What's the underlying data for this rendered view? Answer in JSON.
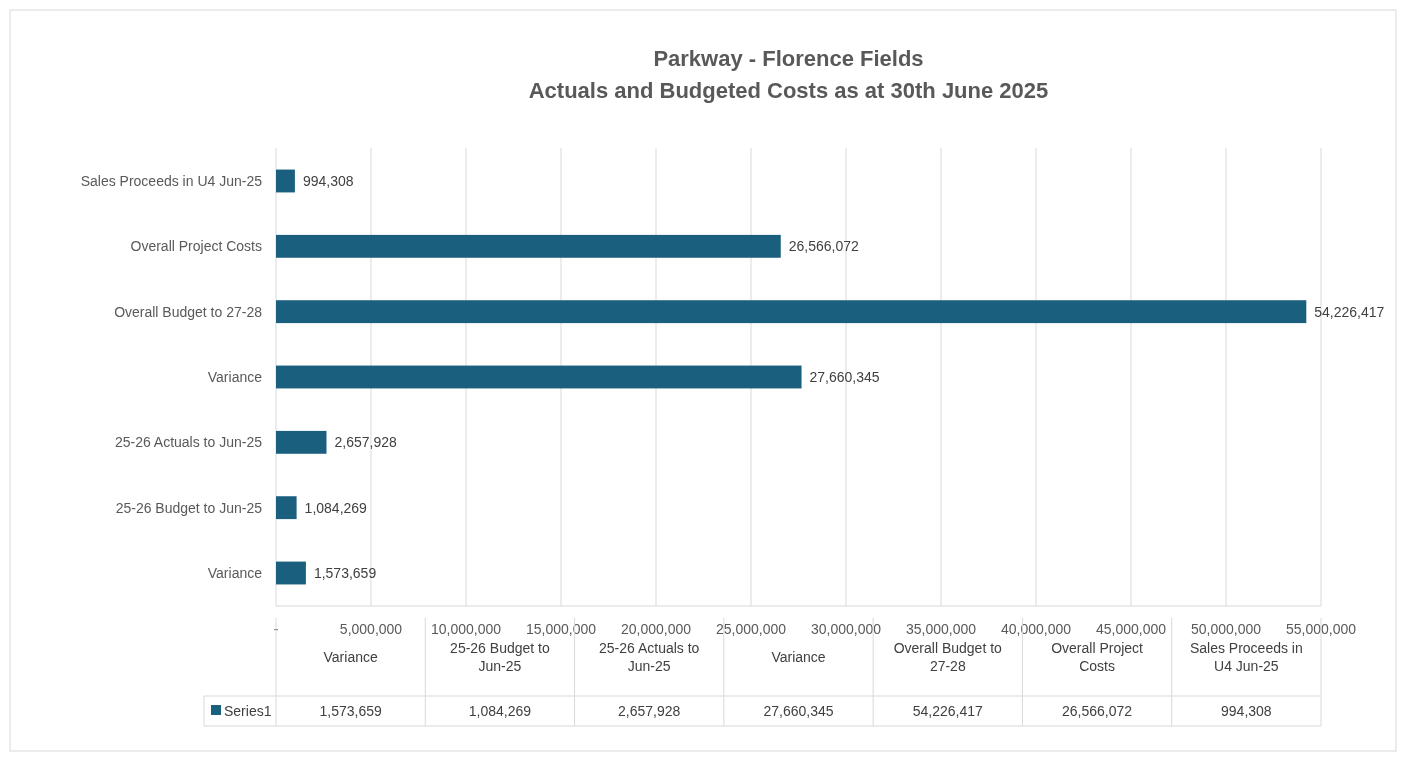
{
  "chart_data": {
    "type": "bar",
    "orientation": "horizontal",
    "title": "Parkway - Florence Fields\nActuals and Budgeted Costs as at 30th June 2025",
    "categories": [
      "Sales Proceeds in U4 Jun-25",
      "Overall Project Costs",
      "Overall Budget to 27-28",
      "Variance",
      "25-26 Actuals to Jun-25",
      "25-26 Budget to Jun-25",
      "Variance"
    ],
    "series": [
      {
        "name": "Series1",
        "color": "#1a5f7e",
        "values": [
          994308,
          26566072,
          54226417,
          27660345,
          2657928,
          1084269,
          1573659
        ],
        "value_labels": [
          "994,308",
          "26,566,072",
          "54,226,417",
          "27,660,345",
          "2,657,928",
          "1,084,269",
          "1,573,659"
        ]
      }
    ],
    "xlim": [
      0,
      55000000
    ],
    "xticks": [
      {
        "value": 0,
        "label": "-"
      },
      {
        "value": 5000000,
        "label": "5,000,000"
      },
      {
        "value": 10000000,
        "label": "10,000,000"
      },
      {
        "value": 15000000,
        "label": "15,000,000"
      },
      {
        "value": 20000000,
        "label": "20,000,000"
      },
      {
        "value": 25000000,
        "label": "25,000,000"
      },
      {
        "value": 30000000,
        "label": "30,000,000"
      },
      {
        "value": 35000000,
        "label": "35,000,000"
      },
      {
        "value": 40000000,
        "label": "40,000,000"
      },
      {
        "value": 45000000,
        "label": "45,000,000"
      },
      {
        "value": 50000000,
        "label": "50,000,000"
      },
      {
        "value": 55000000,
        "label": "55,000,000"
      }
    ],
    "grid": "x",
    "legend": "bottom"
  }
}
